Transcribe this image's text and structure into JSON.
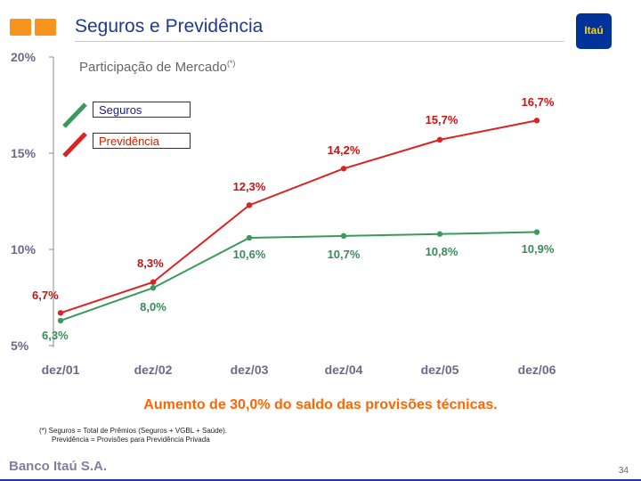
{
  "header": {
    "title": "Seguros e Previdência",
    "logo_text": "Itaú",
    "brand_colors": {
      "orange": "#f7941d",
      "blue": "#003399",
      "yellow": "#ffd200"
    }
  },
  "chart_data": {
    "type": "line",
    "title": "Participação de Mercado",
    "title_mark": "(*)",
    "categories": [
      "dez/01",
      "dez/02",
      "dez/03",
      "dez/04",
      "dez/05",
      "dez/06"
    ],
    "yticks": [
      "20%",
      "15%",
      "10%",
      "5%"
    ],
    "ytick_values": [
      20,
      15,
      10,
      5
    ],
    "ylim": [
      5,
      20
    ],
    "grid": false,
    "legend_position": "top-left",
    "series": [
      {
        "name": "Seguros",
        "color": "#3a9a5c",
        "values": [
          6.3,
          8.0,
          10.6,
          10.7,
          10.8,
          10.9
        ],
        "labels": [
          "6,3%",
          "8,0%",
          "10,6%",
          "10,7%",
          "10,8%",
          "10,9%"
        ]
      },
      {
        "name": "Previdência",
        "color": "#dd2222",
        "values": [
          6.7,
          8.3,
          12.3,
          14.2,
          15.7,
          16.7
        ],
        "labels": [
          "6,7%",
          "8,3%",
          "12,3%",
          "14,2%",
          "15,7%",
          "16,7%"
        ]
      }
    ]
  },
  "conclusion": "Aumento de 30,0% do saldo das provisões técnicas.",
  "footnote": {
    "line1": "(*) Seguros = Total de Prêmios (Seguros + VGBL + Saúde).",
    "line2": "Previdência = Provisões para Previdência Privada"
  },
  "footer": {
    "brand": "Banco Itaú S.A.",
    "page": "34"
  }
}
